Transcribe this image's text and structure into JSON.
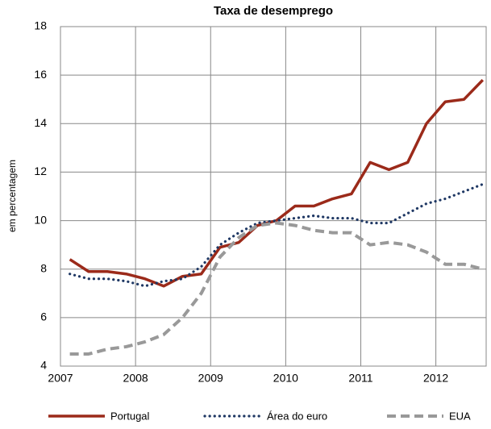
{
  "chart_data": {
    "type": "line",
    "title": "Taxa de desemprego",
    "y_label": "em percentagem",
    "x": [
      2007.125,
      2007.375,
      2007.625,
      2007.875,
      2008.125,
      2008.375,
      2008.625,
      2008.875,
      2009.125,
      2009.375,
      2009.625,
      2009.875,
      2010.125,
      2010.375,
      2010.625,
      2010.875,
      2011.125,
      2011.375,
      2011.625,
      2011.875,
      2012.125,
      2012.375,
      2012.625
    ],
    "series": [
      {
        "name": "Portugal",
        "color": "#9b2a1a",
        "values": [
          8.4,
          7.9,
          7.9,
          7.8,
          7.6,
          7.3,
          7.7,
          7.8,
          8.9,
          9.1,
          9.8,
          10.0,
          10.6,
          10.6,
          10.9,
          11.1,
          12.4,
          12.1,
          12.4,
          14.0,
          14.9,
          15.0,
          15.8
        ]
      },
      {
        "name": "Área do euro",
        "color": "#1f3864",
        "values": [
          7.8,
          7.6,
          7.6,
          7.5,
          7.3,
          7.5,
          7.6,
          8.1,
          9.0,
          9.5,
          9.9,
          10.0,
          10.1,
          10.2,
          10.1,
          10.1,
          9.9,
          9.9,
          10.3,
          10.7,
          10.9,
          11.2,
          11.5
        ]
      },
      {
        "name": "EUA",
        "color": "#999999",
        "values": [
          4.5,
          4.5,
          4.7,
          4.8,
          5.0,
          5.3,
          6.0,
          7.0,
          8.5,
          9.3,
          9.8,
          9.9,
          9.8,
          9.6,
          9.5,
          9.5,
          9.0,
          9.1,
          9.0,
          8.7,
          8.2,
          8.2,
          8.0
        ]
      }
    ],
    "xlim": [
      2007,
      2012.67
    ],
    "xticks": [
      2007,
      2008,
      2009,
      2010,
      2011,
      2012
    ],
    "ylim": [
      4,
      18
    ],
    "yticks": [
      4,
      6,
      8,
      10,
      12,
      14,
      16,
      18
    ],
    "grid": true,
    "legend": "bottom"
  }
}
